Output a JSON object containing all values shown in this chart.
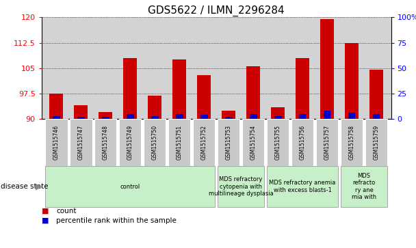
{
  "title": "GDS5622 / ILMN_2296284",
  "samples": [
    "GSM1515746",
    "GSM1515747",
    "GSM1515748",
    "GSM1515749",
    "GSM1515750",
    "GSM1515751",
    "GSM1515752",
    "GSM1515753",
    "GSM1515754",
    "GSM1515755",
    "GSM1515756",
    "GSM1515757",
    "GSM1515758",
    "GSM1515759"
  ],
  "count_values": [
    97.5,
    94.0,
    92.0,
    108.0,
    97.0,
    107.5,
    103.0,
    92.5,
    105.5,
    93.5,
    108.0,
    119.5,
    112.5,
    104.5
  ],
  "percentile_values": [
    3,
    2,
    2,
    5,
    3,
    5,
    4,
    2,
    5,
    3,
    5,
    8,
    6,
    5
  ],
  "ymin": 90,
  "ymax": 120,
  "yticks": [
    90,
    97.5,
    105,
    112.5,
    120
  ],
  "right_yticks": [
    0,
    25,
    50,
    75,
    100
  ],
  "disease_groups": [
    {
      "label": "control",
      "start": 0,
      "end": 7,
      "color": "#c8f0c8"
    },
    {
      "label": "MDS refractory\ncytopenia with\nmultilineage dysplasia",
      "start": 7,
      "end": 9,
      "color": "#c8f0c8"
    },
    {
      "label": "MDS refractory anemia\nwith excess blasts-1",
      "start": 9,
      "end": 12,
      "color": "#c8f0c8"
    },
    {
      "label": "MDS\nrefracto\nry ane\nmia with",
      "start": 12,
      "end": 14,
      "color": "#c8f0c8"
    }
  ],
  "bar_color_red": "#cc0000",
  "bar_color_blue": "#0000cc",
  "plot_bg": "#d3d3d3",
  "sample_box_bg": "#c8c8c8",
  "title_fontsize": 11,
  "tick_fontsize": 8,
  "sample_fontsize": 5.5,
  "disease_fontsize": 6,
  "legend_fontsize": 7.5
}
